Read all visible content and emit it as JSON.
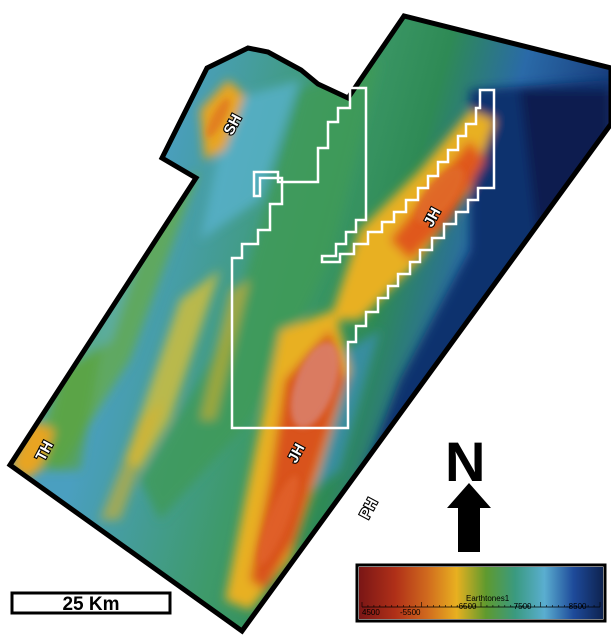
{
  "labels": {
    "sh": "SH",
    "jh_north": "JH",
    "jh_south": "JH",
    "th": "TH",
    "ph": "PH"
  },
  "north_arrow": {
    "letter": "N"
  },
  "scale_bar": {
    "text": "25 Km"
  },
  "legend": {
    "title": "Earthtones1",
    "ticks": [
      "4500",
      "-5500",
      "-6500",
      "-7500",
      "-8500"
    ],
    "colors": [
      "#7a1616",
      "#c8421e",
      "#e0a020",
      "#6aa030",
      "#3a9a80",
      "#4aa8c8",
      "#1e4a9a",
      "#0e2350"
    ]
  },
  "colors": {
    "outline": "#000000",
    "prospect_outline": "#ffffff",
    "deep": "#0f2a6a",
    "high": "#d9674a"
  }
}
